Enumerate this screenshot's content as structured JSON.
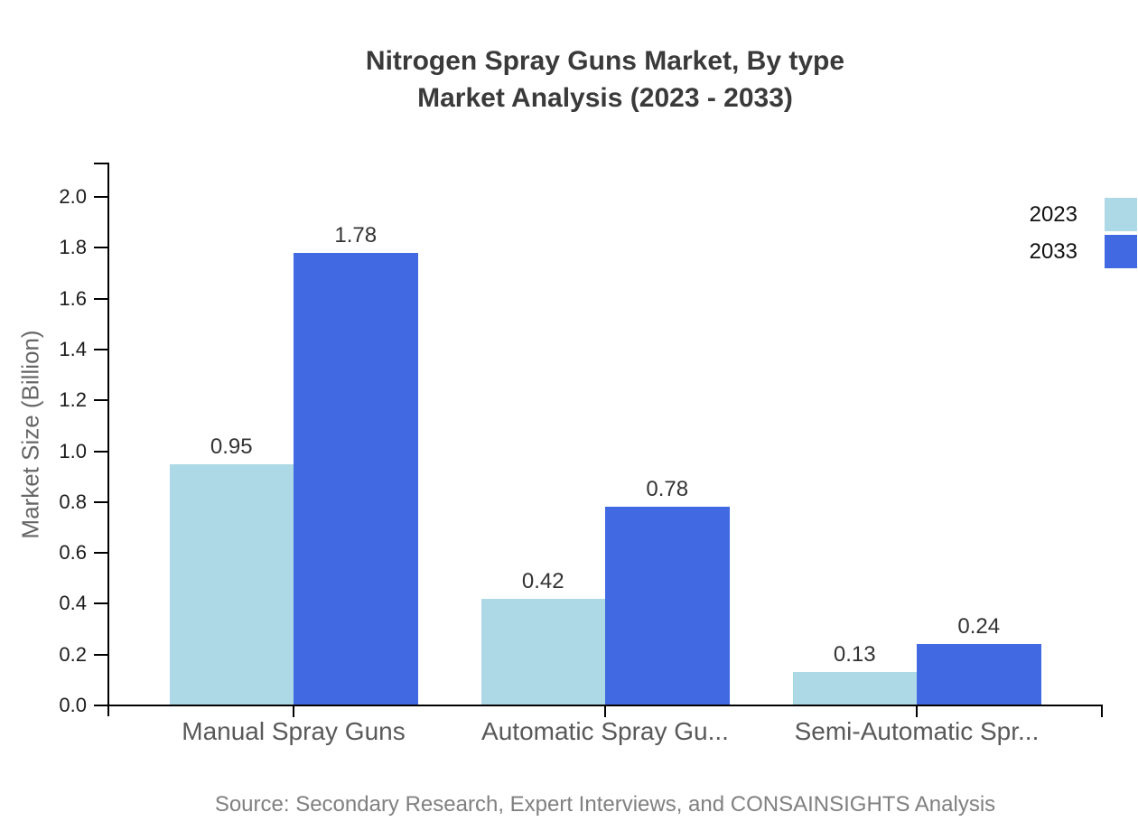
{
  "chart": {
    "title_line1": "Nitrogen Spray Guns Market, By type",
    "title_line2": "Market Analysis (2023 - 2033)",
    "source": "Source: Secondary Research, Expert Interviews, and CONSAINSIGHTS Analysis"
  },
  "chart_data": {
    "type": "bar",
    "title": "Nitrogen Spray Guns Market, By type Market Analysis (2023 - 2033)",
    "categories": [
      "Manual Spray Guns",
      "Automatic Spray Gu...",
      "Semi-Automatic Spr..."
    ],
    "series": [
      {
        "name": "2023",
        "color": "#ADD8E6",
        "values": [
          0.95,
          0.42,
          0.13
        ]
      },
      {
        "name": "2033",
        "color": "#4169E1",
        "values": [
          1.78,
          0.78,
          0.24
        ]
      }
    ],
    "xlabel": "",
    "ylabel": "Market Size (Billion)",
    "ylim": [
      0,
      2.0
    ],
    "ytick_step": 0.2,
    "yticks": [
      "0.0",
      "0.2",
      "0.4",
      "0.6",
      "0.8",
      "1.0",
      "1.2",
      "1.4",
      "1.6",
      "1.8",
      "2.0"
    ],
    "grid": false,
    "legend_position": "top-right",
    "value_labels": true,
    "axis_color": "#000000",
    "value_label_color": "#333333",
    "tick_label_color": "#1c1c1c",
    "category_label_color": "#595959"
  }
}
